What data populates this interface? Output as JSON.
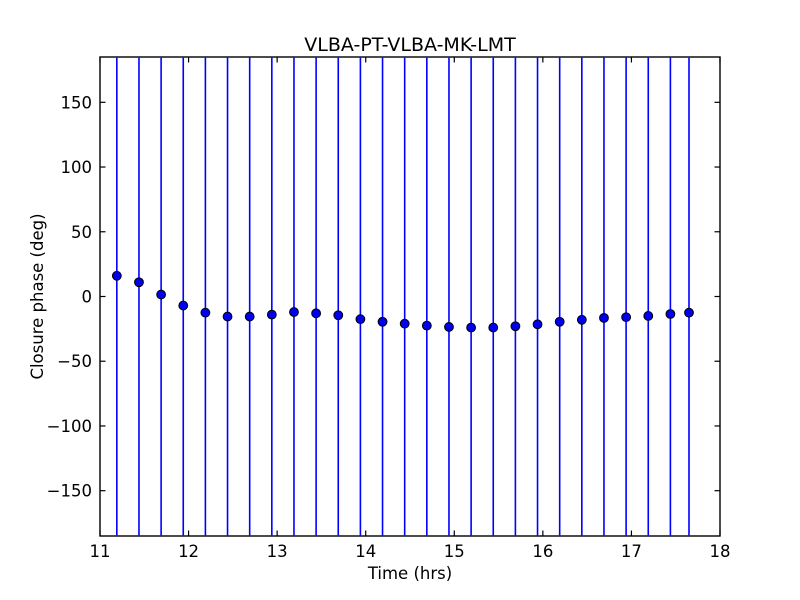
{
  "chart_data": {
    "type": "scatter",
    "title": "VLBA-PT-VLBA-MK-LMT",
    "xlabel": "Time (hrs)",
    "ylabel": "Closure phase (deg)",
    "xlim": [
      11,
      18
    ],
    "ylim": [
      -185,
      185
    ],
    "xticks": [
      11,
      12,
      13,
      14,
      15,
      16,
      17,
      18
    ],
    "xtick_labels": [
      "11",
      "12",
      "13",
      "14",
      "15",
      "16",
      "17",
      "18"
    ],
    "yticks": [
      150,
      100,
      50,
      0,
      -50,
      -100,
      -150
    ],
    "ytick_labels": [
      "150",
      "100",
      "50",
      "0",
      "−50",
      "−100",
      "−150"
    ],
    "grid": false,
    "legend": "none",
    "marker_style": "filled-circle-black-edge",
    "errorbar_style": "vertical-blue-line-clipped-to-full-y-range",
    "colors": {
      "errorbar": "#0000ff",
      "marker_fill": "#0000ee",
      "marker_edge": "#000000",
      "axes": "#000000",
      "background": "#ffffff"
    },
    "series": [
      {
        "name": "closure phase",
        "x": [
          11.19,
          11.44,
          11.69,
          11.94,
          12.19,
          12.44,
          12.69,
          12.94,
          13.19,
          13.44,
          13.69,
          13.94,
          14.19,
          14.44,
          14.69,
          14.94,
          15.19,
          15.44,
          15.69,
          15.94,
          16.19,
          16.44,
          16.69,
          16.94,
          17.19,
          17.44,
          17.65
        ],
        "y": [
          16,
          11,
          1.5,
          -7,
          -12.5,
          -15.5,
          -15.5,
          -14,
          -12,
          -13,
          -14.5,
          -17.5,
          -19.5,
          -21,
          -22.5,
          -23.5,
          -24,
          -24,
          -23,
          -21.5,
          -19.5,
          -18,
          -16.5,
          -16,
          -15,
          -13.5,
          -12.5
        ]
      }
    ]
  }
}
